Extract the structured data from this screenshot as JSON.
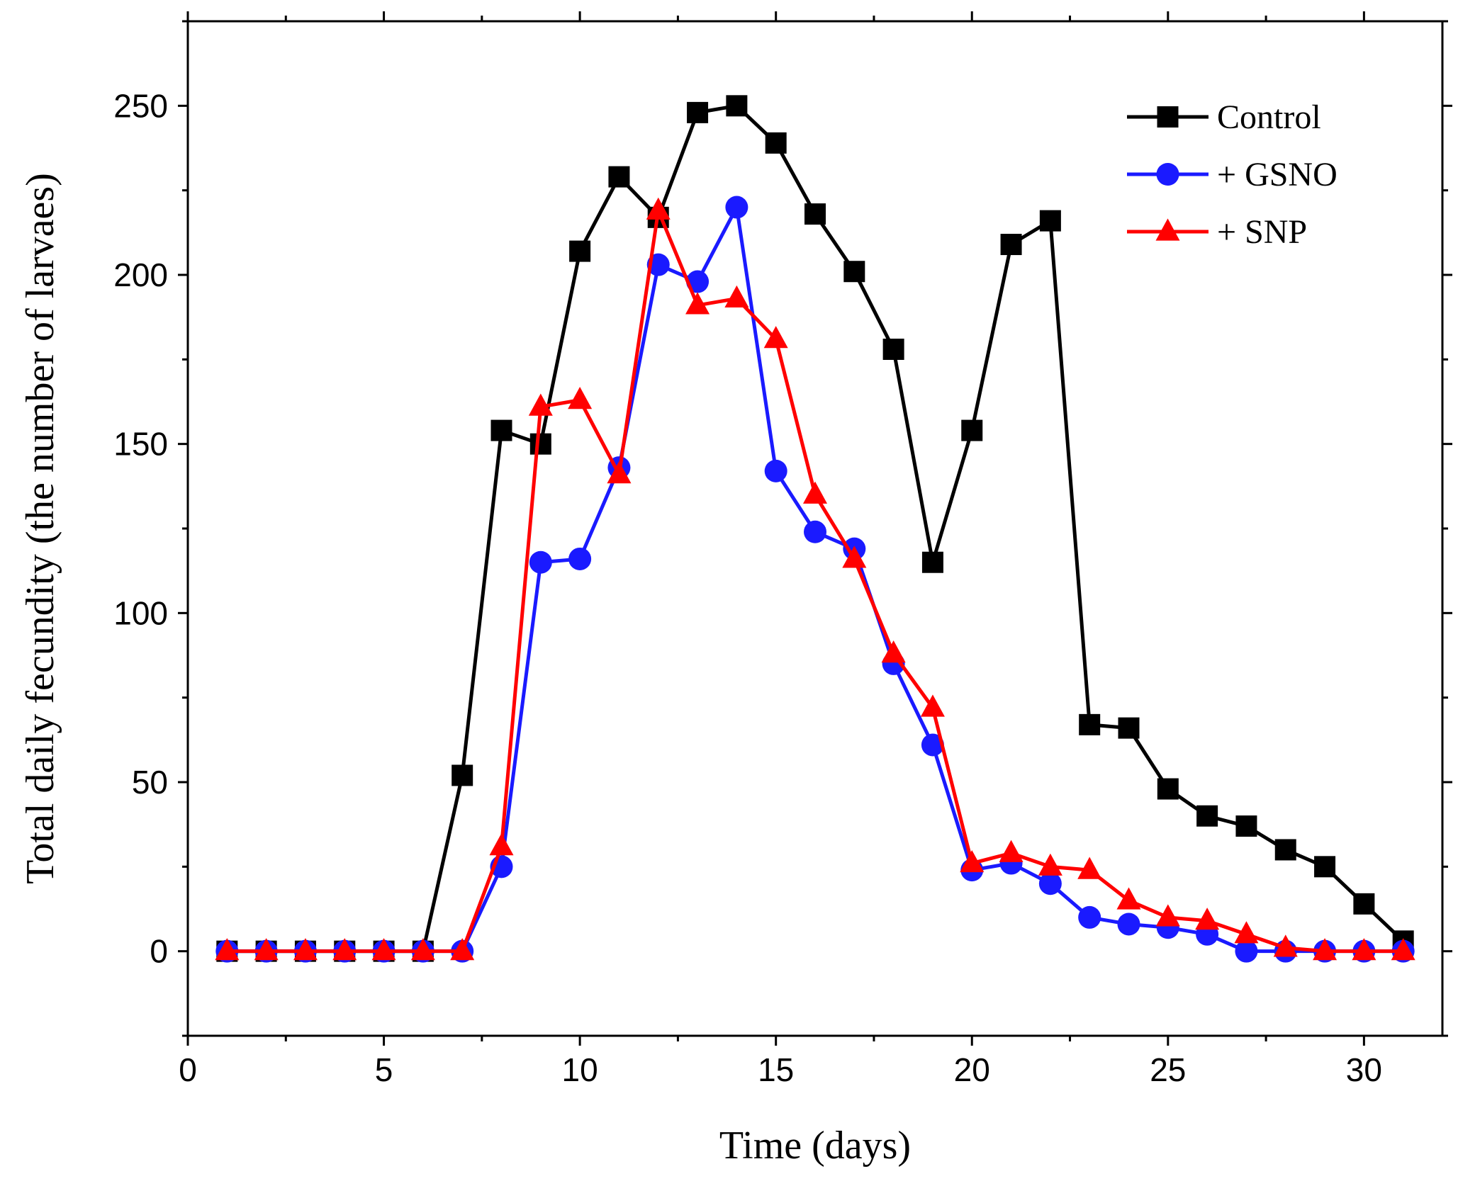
{
  "chart_data": {
    "type": "line",
    "title": "",
    "xlabel": "Time (days)",
    "ylabel": "Total daily fecundity (the number of larvaes)",
    "xlim": [
      0,
      32
    ],
    "ylim": [
      -25,
      275
    ],
    "xticks": [
      0,
      5,
      10,
      15,
      20,
      25,
      30
    ],
    "yticks": [
      0,
      50,
      100,
      150,
      200,
      250
    ],
    "grid": false,
    "legend_position": "top-right",
    "x": [
      1,
      2,
      3,
      4,
      5,
      6,
      7,
      8,
      9,
      10,
      11,
      12,
      13,
      14,
      15,
      16,
      17,
      18,
      19,
      20,
      21,
      22,
      23,
      24,
      25,
      26,
      27,
      28,
      29,
      30,
      31
    ],
    "series": [
      {
        "name": "Control",
        "color": "#000000",
        "marker": "square",
        "values": [
          0,
          0,
          0,
          0,
          0,
          0,
          52,
          154,
          150,
          207,
          229,
          217,
          248,
          250,
          239,
          218,
          201,
          178,
          115,
          154,
          209,
          216,
          67,
          66,
          48,
          40,
          37,
          30,
          25,
          14,
          3
        ]
      },
      {
        "name": "+ GSNO",
        "color": "#1a1aff",
        "marker": "circle",
        "values": [
          0,
          0,
          0,
          0,
          0,
          0,
          0,
          25,
          115,
          116,
          143,
          203,
          198,
          220,
          142,
          124,
          119,
          85,
          61,
          24,
          26,
          20,
          10,
          8,
          7,
          5,
          0,
          0,
          0,
          0,
          0
        ]
      },
      {
        "name": "+ SNP",
        "color": "#ff0000",
        "marker": "triangle",
        "values": [
          0,
          0,
          0,
          0,
          0,
          0,
          0,
          31,
          161,
          163,
          141,
          219,
          191,
          193,
          181,
          135,
          116,
          88,
          72,
          26,
          29,
          25,
          24,
          15,
          10,
          9,
          5,
          1,
          0,
          0,
          0
        ]
      }
    ]
  }
}
